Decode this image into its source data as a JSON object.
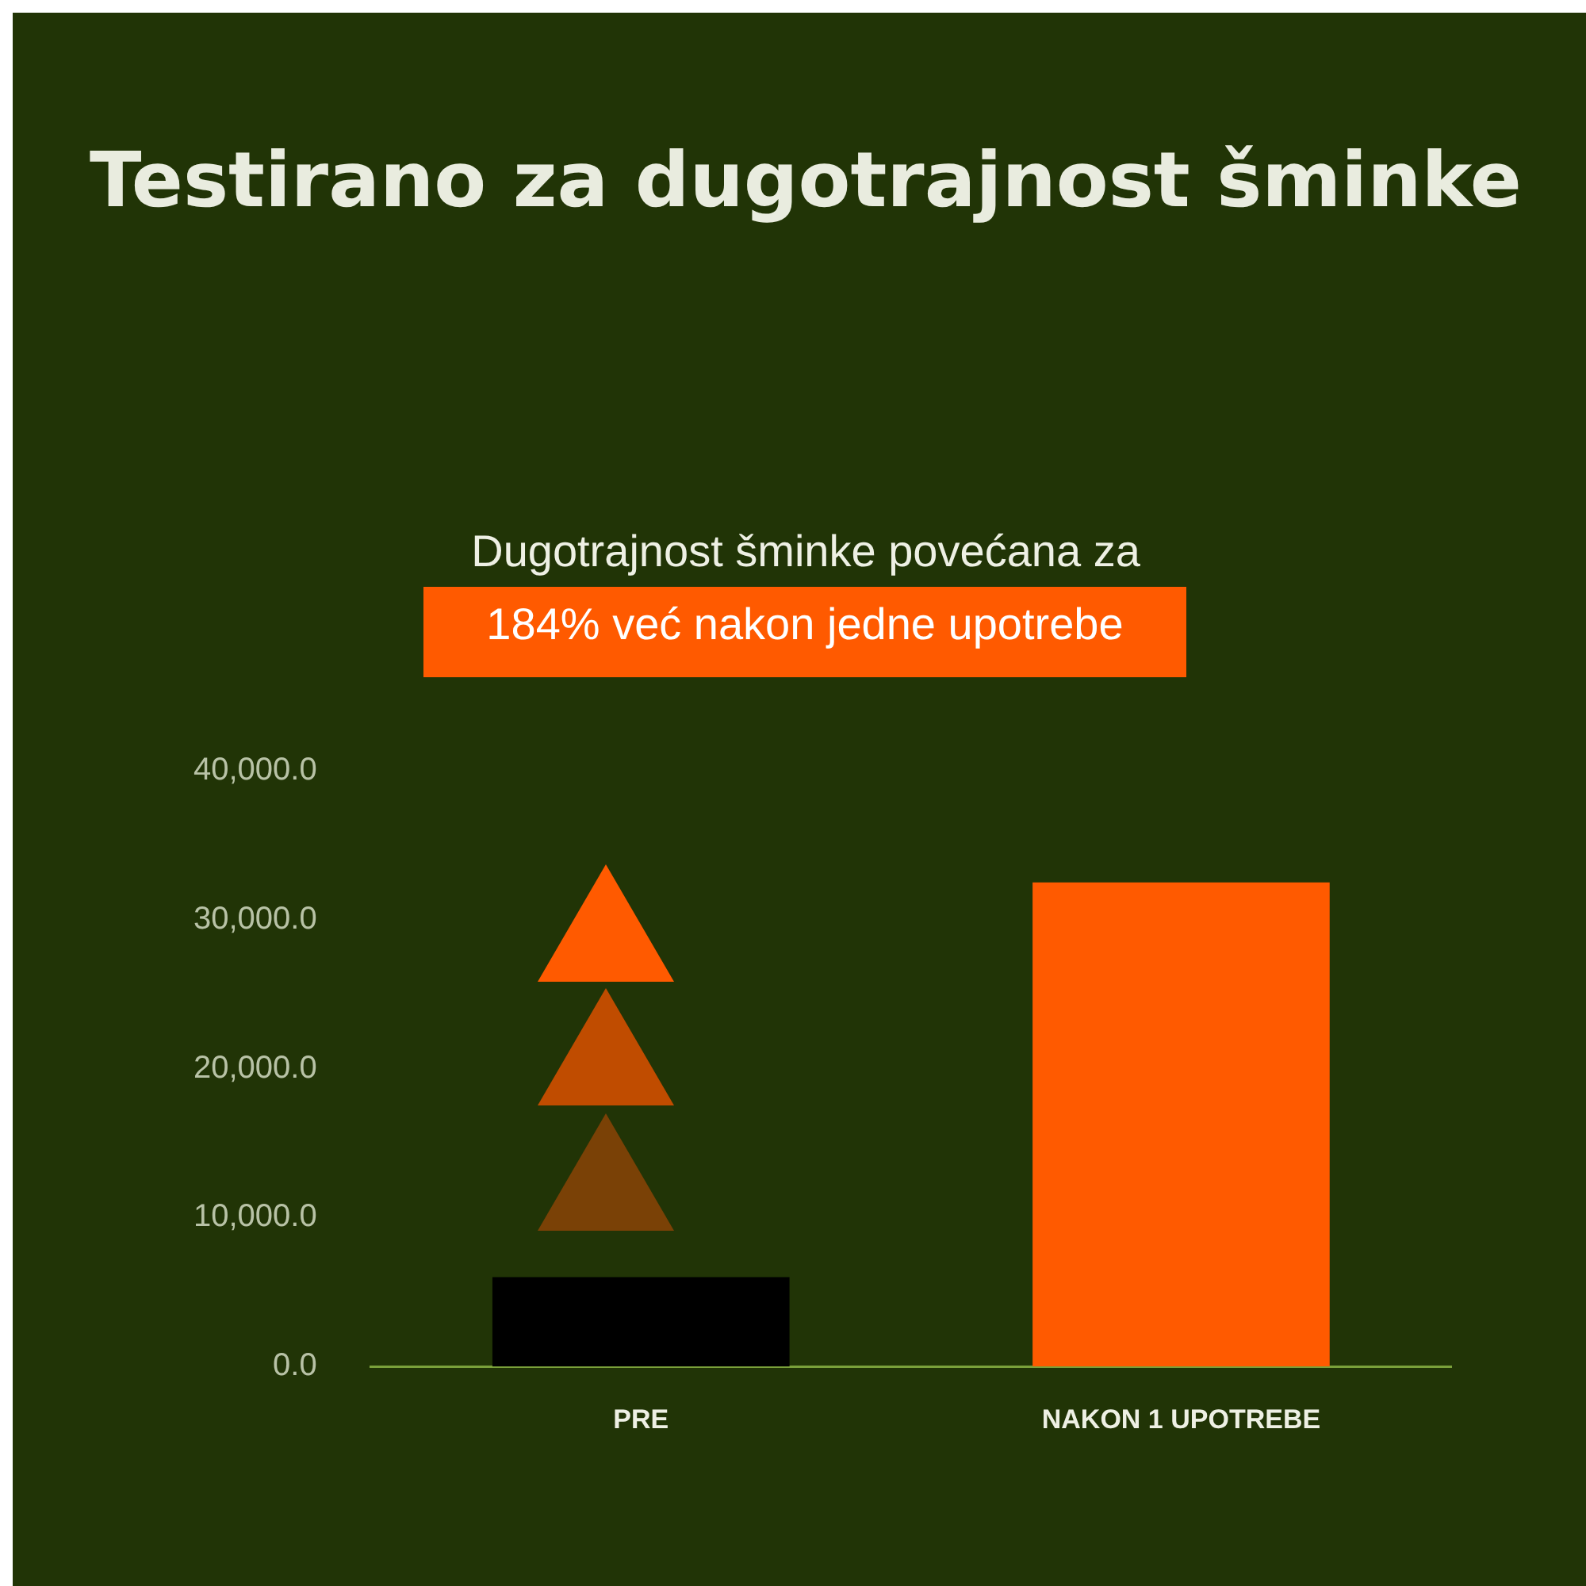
{
  "chart_data": {
    "type": "bar",
    "title": "Testirano za dugotrajnost šminke",
    "annotations": [
      "Dugotrajnost šminke povećana za",
      "184% već nakon jedne upotrebe"
    ],
    "categories": [
      "PRE",
      "NAKON 1 UPOTREBE"
    ],
    "values": [
      6000,
      32500
    ],
    "colors": [
      "#000000",
      "#ff5a00"
    ],
    "ylim": [
      0,
      40000
    ],
    "yticks": [
      {
        "value": 0,
        "label": "0.0"
      },
      {
        "value": 10000,
        "label": "10,000.0"
      },
      {
        "value": 20000,
        "label": "20,000.0"
      },
      {
        "value": 30000,
        "label": "30,000.0"
      },
      {
        "value": 40000,
        "label": "40,000.0"
      }
    ],
    "grid": false,
    "legend": false
  }
}
